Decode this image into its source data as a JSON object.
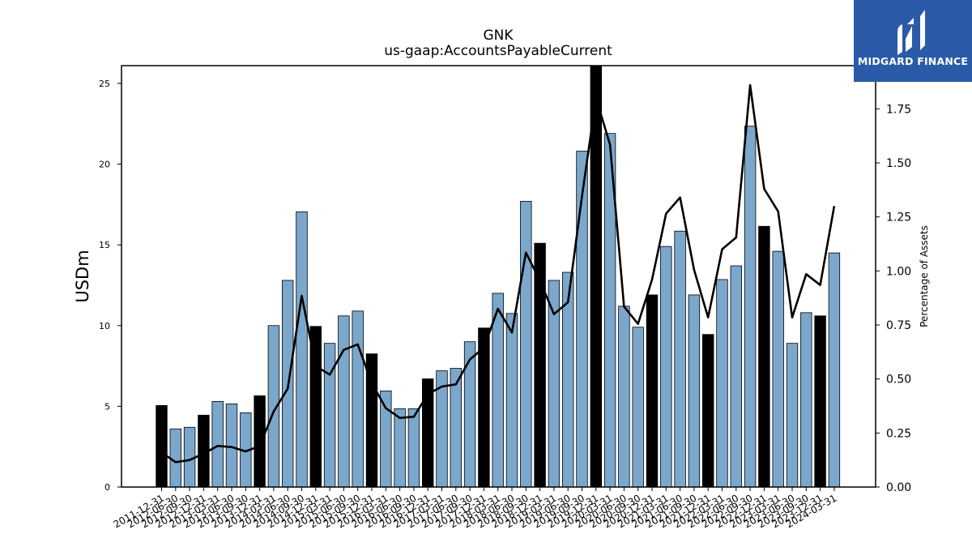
{
  "chart_data": {
    "type": "bar",
    "title": "GNK",
    "subtitle": "us-gaap:AccountsPayableCurrent",
    "ylabel": "USDm",
    "y2label": "Percentage of Assets",
    "ylim": [
      0,
      26.1
    ],
    "y2lim": [
      0,
      1.95
    ],
    "yticks": [
      0,
      5,
      10,
      15,
      20,
      25
    ],
    "y2ticks": [
      "0.00",
      "0.25",
      "0.50",
      "0.75",
      "1.00",
      "1.25",
      "1.50",
      "1.75"
    ],
    "categories": [
      "2011-12-31",
      "2012-06-30",
      "2012-09-30",
      "2012-12-31",
      "2013-03-31",
      "2013-06-30",
      "2013-09-30",
      "2013-12-31",
      "2014-03-31",
      "2014-06-30",
      "2014-09-30",
      "2014-12-31",
      "2015-03-31",
      "2015-06-30",
      "2015-09-30",
      "2015-12-31",
      "2016-03-31",
      "2016-06-30",
      "2016-09-30",
      "2016-12-31",
      "2017-03-31",
      "2017-06-30",
      "2017-09-30",
      "2017-12-31",
      "2018-03-31",
      "2018-06-30",
      "2018-09-30",
      "2018-12-31",
      "2019-03-31",
      "2019-06-30",
      "2019-09-30",
      "2019-12-31",
      "2020-03-31",
      "2020-06-30",
      "2020-09-30",
      "2020-12-31",
      "2021-03-31",
      "2021-06-30",
      "2021-09-30",
      "2021-12-31",
      "2022-03-31",
      "2022-06-30",
      "2022-09-30",
      "2022-12-31",
      "2023-03-31",
      "2023-06-30",
      "2023-09-30",
      "2023-12-31",
      "2024-03-31"
    ],
    "series": [
      {
        "name": "USDm",
        "kind": "bar",
        "values": [
          5.05,
          3.6,
          3.7,
          4.45,
          5.3,
          5.15,
          4.6,
          5.65,
          10.0,
          12.8,
          17.05,
          9.95,
          8.9,
          10.6,
          10.9,
          8.25,
          5.95,
          4.85,
          4.85,
          6.7,
          7.2,
          7.35,
          9.0,
          9.85,
          12.0,
          10.75,
          17.7,
          15.1,
          12.8,
          13.3,
          20.8,
          26.1,
          21.9,
          11.2,
          9.9,
          11.9,
          14.9,
          15.85,
          11.9,
          9.45,
          12.85,
          13.7,
          22.35,
          16.15,
          14.6,
          8.9,
          10.8,
          10.6,
          14.5
        ]
      },
      {
        "name": "Percentage of Assets",
        "kind": "line",
        "values": [
          0.16,
          0.115,
          0.125,
          0.155,
          0.19,
          0.185,
          0.165,
          0.19,
          0.35,
          0.455,
          0.885,
          0.56,
          0.52,
          0.635,
          0.66,
          0.48,
          0.365,
          0.32,
          0.325,
          0.43,
          0.465,
          0.475,
          0.59,
          0.645,
          0.825,
          0.715,
          1.085,
          0.955,
          0.8,
          0.855,
          1.345,
          1.8,
          1.585,
          0.835,
          0.755,
          0.96,
          1.265,
          1.34,
          1.005,
          0.785,
          1.1,
          1.155,
          1.86,
          1.38,
          1.275,
          0.785,
          0.985,
          0.935,
          1.3
        ]
      }
    ],
    "highlight_categories": [
      "2011-12-31",
      "2012-12-31",
      "2013-12-31",
      "2014-12-31",
      "2015-12-31",
      "2016-12-31",
      "2017-12-31",
      "2018-12-31",
      "2019-12-31",
      "2020-12-31",
      "2021-12-31",
      "2022-12-31",
      "2023-12-31"
    ],
    "colors": {
      "bar": "#7ba7cc",
      "bar_highlight": "#000000",
      "line": "#000000",
      "logo_bg": "#2b5aa8"
    },
    "grid": false,
    "legend": "none"
  },
  "logo": {
    "text": "MIDGARD FINANCE"
  }
}
